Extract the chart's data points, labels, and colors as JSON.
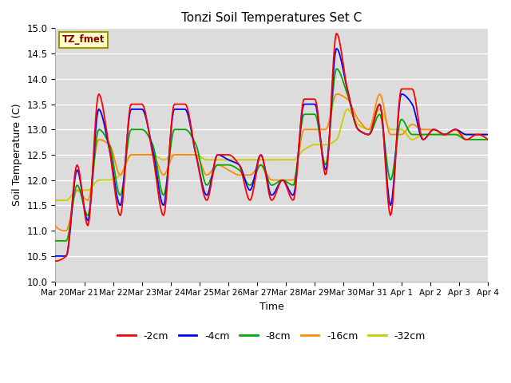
{
  "title": "Tonzi Soil Temperatures Set C",
  "xlabel": "Time",
  "ylabel": "Soil Temperature (C)",
  "ylim": [
    10.0,
    15.0
  ],
  "yticks": [
    10.0,
    10.5,
    11.0,
    11.5,
    12.0,
    12.5,
    13.0,
    13.5,
    14.0,
    14.5,
    15.0
  ],
  "xtick_labels": [
    "Mar 20",
    "Mar 21",
    "Mar 22",
    "Mar 23",
    "Mar 24",
    "Mar 25",
    "Mar 26",
    "Mar 27",
    "Mar 28",
    "Mar 29",
    "Mar 30",
    "Mar 31",
    "Apr 1",
    "Apr 2",
    "Apr 3",
    "Apr 4"
  ],
  "bg_color": "#dcdcdc",
  "label_box_color": "#ffffcc",
  "label_box_text": "TZ_fmet",
  "label_box_text_color": "#8b0000",
  "series": {
    "neg2cm": {
      "color": "#ff0000",
      "label": "-2cm",
      "values": [
        10.4,
        10.5,
        11.6,
        12.3,
        11.1,
        13.7,
        12.6,
        11.6,
        13.5,
        12.6,
        11.3,
        13.5,
        13.5,
        12.5,
        11.3,
        13.5,
        12.1,
        11.7,
        12.1,
        12.6,
        12.5,
        12.3,
        11.6,
        11.6,
        12.5,
        12.3,
        11.6,
        12.0,
        11.6,
        12.5,
        13.5,
        13.6,
        12.1,
        13.6,
        14.9,
        13.8,
        13.0,
        12.9,
        13.5,
        13.0,
        11.8,
        13.5,
        13.0,
        11.3,
        13.8,
        13.8,
        12.8,
        12.9,
        13.0,
        12.8,
        12.8,
        12.9,
        13.0,
        12.8,
        12.8,
        12.9,
        12.8,
        12.8,
        12.8,
        12.8,
        12.8,
        12.8,
        12.8,
        12.8
      ]
    },
    "neg4cm": {
      "color": "#0000ff",
      "label": "-4cm",
      "values": [
        10.5,
        10.5,
        11.7,
        12.2,
        11.2,
        13.4,
        12.6,
        11.5,
        13.5,
        12.6,
        11.5,
        13.4,
        13.4,
        12.5,
        11.5,
        13.4,
        12.2,
        11.8,
        12.1,
        12.5,
        12.4,
        12.3,
        11.8,
        11.7,
        12.5,
        12.2,
        11.7,
        12.0,
        11.7,
        12.5,
        13.5,
        13.5,
        12.2,
        13.5,
        14.6,
        13.8,
        13.0,
        12.9,
        13.5,
        13.0,
        11.8,
        13.5,
        12.9,
        11.5,
        13.7,
        13.5,
        12.8,
        12.9,
        13.0,
        12.9,
        12.9,
        12.9,
        12.9,
        12.9,
        12.9,
        12.9,
        12.9,
        12.9,
        12.9,
        12.9,
        12.9,
        12.9,
        12.9,
        12.9
      ]
    },
    "neg8cm": {
      "color": "#00aa00",
      "label": "-8cm",
      "values": [
        10.8,
        10.8,
        11.8,
        11.9,
        11.3,
        13.0,
        12.7,
        11.8,
        13.3,
        12.7,
        11.7,
        13.0,
        13.0,
        12.7,
        11.7,
        13.0,
        12.3,
        12.0,
        12.2,
        12.3,
        12.3,
        12.2,
        11.9,
        11.9,
        12.3,
        12.1,
        11.9,
        12.0,
        11.9,
        12.3,
        13.3,
        13.3,
        12.3,
        13.3,
        14.2,
        13.7,
        13.0,
        12.9,
        13.3,
        12.8,
        12.0,
        13.2,
        12.8,
        12.0,
        13.2,
        12.9,
        12.9,
        12.9,
        12.9,
        12.8,
        12.8,
        12.8,
        12.8,
        12.8,
        12.8,
        12.8,
        12.8,
        12.8,
        12.8,
        12.8,
        12.8,
        12.8,
        12.8,
        12.8
      ]
    },
    "neg16cm": {
      "color": "#ff8c00",
      "label": "-16cm",
      "values": [
        11.1,
        11.0,
        11.7,
        11.8,
        11.6,
        12.8,
        12.7,
        12.1,
        12.6,
        12.5,
        12.1,
        12.6,
        12.6,
        12.5,
        12.1,
        12.5,
        12.4,
        12.3,
        12.3,
        12.3,
        12.2,
        12.1,
        12.1,
        12.1,
        12.3,
        12.1,
        12.0,
        12.1,
        12.0,
        12.3,
        12.9,
        13.0,
        13.0,
        13.0,
        13.7,
        13.6,
        13.3,
        13.2,
        13.7,
        13.3,
        12.9,
        13.3,
        13.0,
        12.8,
        12.9,
        13.1,
        13.0,
        13.0,
        12.9,
        12.9,
        12.9,
        12.9,
        12.9,
        12.9,
        12.9,
        12.9,
        12.9,
        12.9,
        12.9,
        12.9,
        12.9,
        12.9,
        12.9,
        12.9
      ]
    },
    "neg32cm": {
      "color": "#cccc00",
      "label": "-32cm",
      "values": [
        11.6,
        11.6,
        11.7,
        11.8,
        11.8,
        12.0,
        12.0,
        12.1,
        12.5,
        12.5,
        12.4,
        12.5,
        12.5,
        12.5,
        12.4,
        12.5,
        12.5,
        12.4,
        12.4,
        12.4,
        12.4,
        12.4,
        12.4,
        12.4,
        12.4,
        12.4,
        12.4,
        12.4,
        12.4,
        12.4,
        12.5,
        12.6,
        12.7,
        12.7,
        12.8,
        13.4,
        13.3,
        13.1,
        13.4,
        13.0,
        13.0,
        13.0,
        12.8,
        12.8,
        13.0,
        12.9,
        12.9,
        12.9,
        12.9,
        12.9,
        12.9,
        12.9,
        12.9,
        12.9,
        12.9,
        12.9,
        12.9,
        12.9,
        12.9,
        12.9,
        12.9,
        12.9,
        12.9,
        12.9
      ]
    }
  }
}
